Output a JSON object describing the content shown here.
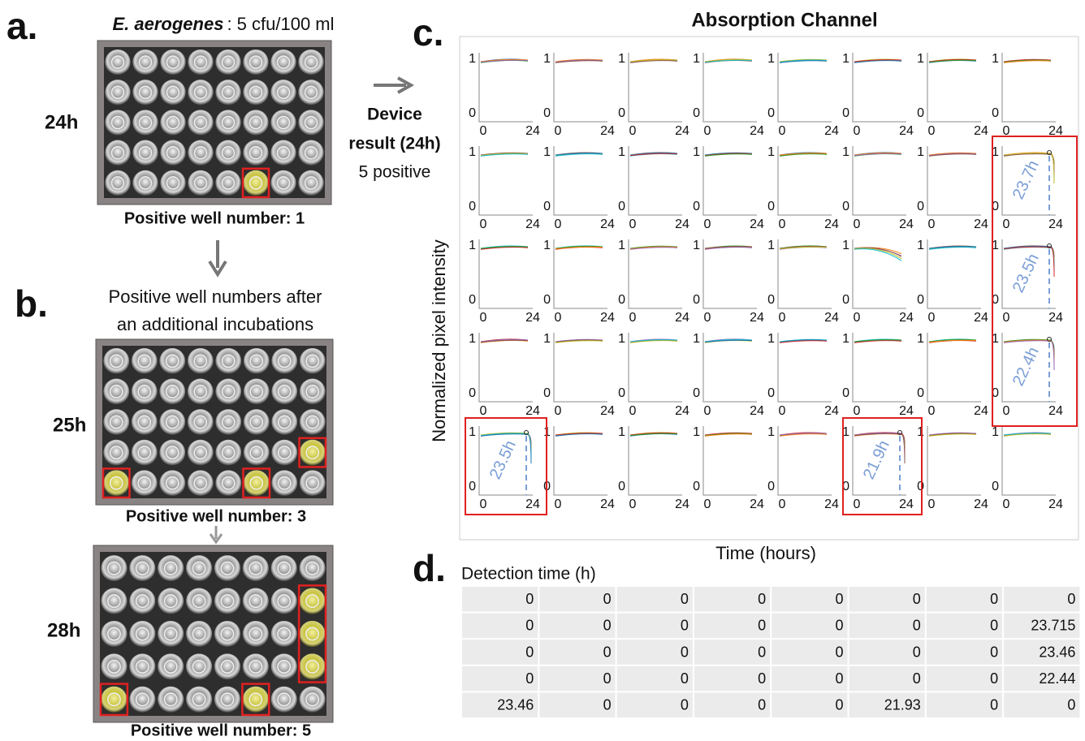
{
  "panel_a": {
    "label": "a.",
    "organism": "E. aerogenes",
    "concentration": ": 5 cfu/100 ml",
    "time": "24h",
    "caption": "Positive well number: 1"
  },
  "device_result": {
    "line1": "Device",
    "line2": "result (24h)",
    "line3": "5 positive"
  },
  "panel_b": {
    "label": "b.",
    "heading": [
      "Positive well numbers after",
      "an additional incubations"
    ],
    "plates": [
      {
        "time": "25h",
        "caption": "Positive well number: 3"
      },
      {
        "time": "28h",
        "caption": "Positive well number: 5"
      }
    ]
  },
  "panel_c": {
    "label": "c.",
    "title": "Absorption  Channel",
    "y_label": "Normalized  pixel intensity",
    "x_label": "Time (hours)",
    "yticks": [
      0,
      1
    ],
    "xticks": [
      0,
      24
    ],
    "annotations": [
      [
        null,
        null,
        null,
        null,
        null,
        null,
        null,
        null
      ],
      [
        null,
        null,
        null,
        null,
        null,
        null,
        null,
        "23.7h"
      ],
      [
        null,
        null,
        null,
        null,
        null,
        null,
        null,
        "23.5h"
      ],
      [
        null,
        null,
        null,
        null,
        null,
        null,
        null,
        "22.4h"
      ],
      [
        "23.5h",
        null,
        null,
        null,
        null,
        "21.9h",
        null,
        null
      ]
    ]
  },
  "panel_d": {
    "label": "d.",
    "title": "Detection time (h)",
    "rows": [
      [
        0,
        0,
        0,
        0,
        0,
        0,
        0,
        0
      ],
      [
        0,
        0,
        0,
        0,
        0,
        0,
        0,
        23.715
      ],
      [
        0,
        0,
        0,
        0,
        0,
        0,
        0,
        23.46
      ],
      [
        0,
        0,
        0,
        0,
        0,
        0,
        0,
        22.44
      ],
      [
        23.46,
        0,
        0,
        0,
        0,
        21.93,
        0,
        0
      ]
    ]
  }
}
